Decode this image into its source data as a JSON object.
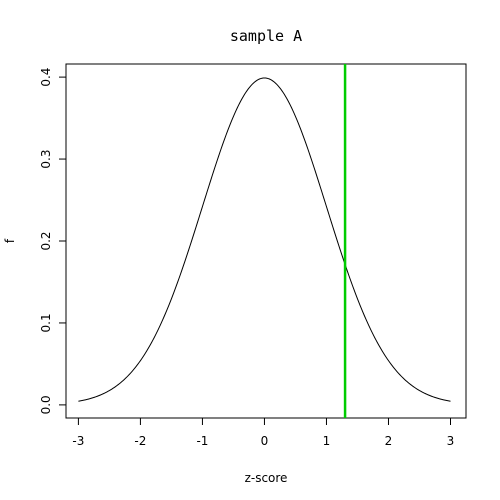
{
  "chart_data": {
    "type": "line",
    "title": "sample A",
    "xlabel": "z-score",
    "ylabel": "f",
    "xlim": [
      -3.2,
      3.25
    ],
    "ylim": [
      -0.016,
      0.416
    ],
    "x_ticks": [
      -3,
      -2,
      -1,
      0,
      1,
      2,
      3
    ],
    "x_tick_labels": [
      "-3",
      "-2",
      "-1",
      "0",
      "1",
      "2",
      "3"
    ],
    "y_ticks": [
      0.0,
      0.1,
      0.2,
      0.3,
      0.4
    ],
    "y_tick_labels": [
      "0.0",
      "0.1",
      "0.2",
      "0.3",
      "0.4"
    ],
    "grid": false,
    "series": [
      {
        "line_color": "#000000",
        "x": [
          -3.0,
          -2.75,
          -2.5,
          -2.25,
          -2.0,
          -1.75,
          -1.5,
          -1.25,
          -1.0,
          -0.75,
          -0.5,
          -0.25,
          0.0,
          0.25,
          0.5,
          0.75,
          1.0,
          1.25,
          1.5,
          1.75,
          2.0,
          2.25,
          2.5,
          2.75,
          3.0
        ],
        "y": [
          0.0044,
          0.0091,
          0.0175,
          0.0317,
          0.054,
          0.0863,
          0.1295,
          0.1826,
          0.242,
          0.3011,
          0.3521,
          0.3867,
          0.3989,
          0.3867,
          0.3521,
          0.3011,
          0.242,
          0.1826,
          0.1295,
          0.0863,
          0.054,
          0.0317,
          0.0175,
          0.0091,
          0.0044
        ]
      }
    ],
    "vline": {
      "x": 1.3,
      "color": "#00cc00"
    }
  }
}
